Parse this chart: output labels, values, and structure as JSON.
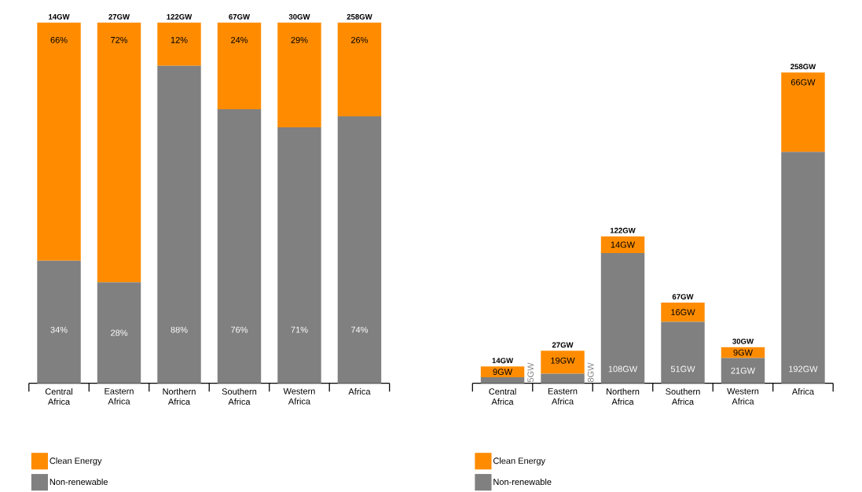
{
  "chart_data": [
    {
      "type": "bar",
      "stacked": true,
      "categories": [
        "Central Africa",
        "Eastern Africa",
        "Northern Africa",
        "Southern Africa",
        "Western Africa",
        "Africa"
      ],
      "series": [
        {
          "name": "Non-renewable",
          "color": "#808080",
          "values": [
            34,
            28,
            88,
            76,
            71,
            74
          ],
          "value_labels": [
            "34%",
            "28%",
            "88%",
            "76%",
            "71%",
            "74%"
          ]
        },
        {
          "name": "Clean Energy",
          "color": "#ff8c00",
          "values": [
            66,
            72,
            12,
            24,
            29,
            26
          ],
          "value_labels": [
            "66%",
            "72%",
            "12%",
            "24%",
            "29%",
            "26%"
          ]
        }
      ],
      "annotations": [
        {
          "text": "14GW",
          "x": "Central Africa",
          "y": 100
        },
        {
          "text": "27GW",
          "x": "Eastern Africa",
          "y": 100
        },
        {
          "text": "122GW",
          "x": "Northern Africa",
          "y": 100
        },
        {
          "text": "67GW",
          "x": "Southern Africa",
          "y": 100
        },
        {
          "text": "30GW",
          "x": "Western Africa",
          "y": 100
        },
        {
          "text": "258GW",
          "x": "Africa",
          "y": 100
        }
      ],
      "tick_labels": "x",
      "legend": "bottom left"
    },
    {
      "type": "bar",
      "stacked": true,
      "categories": [
        "Central Africa",
        "Eastern Africa",
        "Northern Africa",
        "Southern Africa",
        "Western Africa",
        "Africa"
      ],
      "series": [
        {
          "name": "Non-renewable",
          "color": "#808080",
          "values": [
            5,
            8,
            108,
            51,
            21,
            192
          ],
          "value_labels": [
            "5GW",
            "8GW",
            "108GW",
            "51GW",
            "21GW",
            "192GW"
          ]
        },
        {
          "name": "Clean Energy",
          "color": "#ff8c00",
          "values": [
            9,
            19,
            14,
            16,
            9,
            66
          ],
          "value_labels": [
            "9GW",
            "19GW",
            "14GW",
            "16GW",
            "9GW",
            "66GW"
          ]
        }
      ],
      "totals": [
        "14GW",
        "27GW",
        "122GW",
        "67GW",
        "30GW",
        "258GW"
      ],
      "tick_labels": "x",
      "legend": "bottom left"
    }
  ]
}
